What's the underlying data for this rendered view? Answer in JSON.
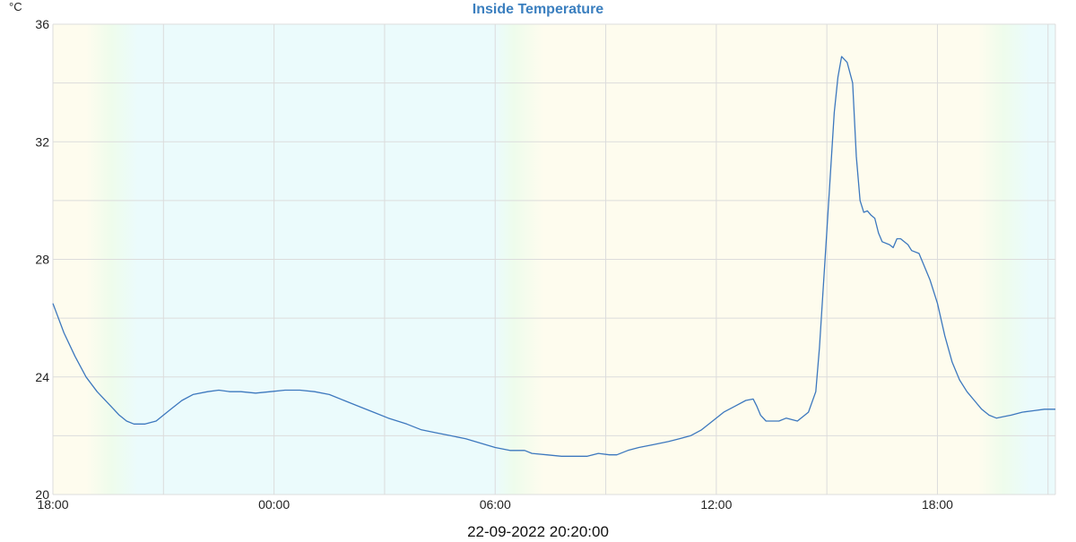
{
  "chart_data": {
    "type": "line",
    "title": "Inside Temperature",
    "unit": "°C",
    "timestamp": "22-09-2022 20:20:00",
    "ylim": [
      20,
      36
    ],
    "y_ticks": [
      20,
      24,
      28,
      32,
      36
    ],
    "x_range_hours": [
      18,
      45.2
    ],
    "x_ticks": [
      {
        "h": 18,
        "label": "18:00"
      },
      {
        "h": 24,
        "label": "00:00"
      },
      {
        "h": 30,
        "label": "06:00"
      },
      {
        "h": 36,
        "label": "12:00"
      },
      {
        "h": 42,
        "label": "18:00"
      }
    ],
    "grid": true,
    "line_color": "#3d78be",
    "band_colors": {
      "day": "#fefcee",
      "night": "#ebfbfc",
      "twilight": "#eefcec"
    },
    "series": [
      {
        "x": [
          18.0,
          18.3,
          18.6,
          18.9,
          19.2,
          19.5,
          19.8,
          20.0,
          20.2,
          20.5,
          20.8,
          21.2,
          21.5,
          21.8,
          22.2,
          22.5,
          22.8,
          23.1,
          23.5,
          23.9,
          24.3,
          24.7,
          25.1,
          25.5,
          25.9,
          26.3,
          26.7,
          27.1,
          27.6,
          28.0,
          28.4,
          28.8,
          29.2,
          29.6,
          30.0,
          30.4,
          30.8,
          31.0,
          31.4,
          31.8,
          32.2,
          32.5,
          32.8,
          33.1,
          33.3,
          33.6,
          33.9,
          34.3,
          34.7,
          35.0,
          35.3,
          35.6,
          35.9,
          36.2,
          36.5,
          36.8,
          37.0,
          37.1,
          37.2,
          37.35,
          37.5,
          37.7,
          37.9,
          38.2,
          38.5,
          38.7,
          38.8,
          39.0,
          39.2,
          39.3,
          39.4,
          39.55,
          39.7,
          39.8,
          39.9,
          40.0,
          40.1,
          40.2,
          40.3,
          40.4,
          40.5,
          40.7,
          40.8,
          40.9,
          41.0,
          41.2,
          41.3,
          41.5,
          41.8,
          42.0,
          42.2,
          42.4,
          42.6,
          42.8,
          43.0,
          43.2,
          43.4,
          43.6,
          43.8,
          44.0,
          44.3,
          44.6,
          44.9,
          45.2
        ],
        "y": [
          26.5,
          25.5,
          24.7,
          24.0,
          23.5,
          23.1,
          22.7,
          22.5,
          22.4,
          22.4,
          22.5,
          22.9,
          23.2,
          23.4,
          23.5,
          23.55,
          23.5,
          23.5,
          23.45,
          23.5,
          23.55,
          23.55,
          23.5,
          23.4,
          23.2,
          23.0,
          22.8,
          22.6,
          22.4,
          22.2,
          22.1,
          22.0,
          21.9,
          21.75,
          21.6,
          21.5,
          21.5,
          21.4,
          21.35,
          21.3,
          21.3,
          21.3,
          21.4,
          21.35,
          21.35,
          21.5,
          21.6,
          21.7,
          21.8,
          21.9,
          22.0,
          22.2,
          22.5,
          22.8,
          23.0,
          23.2,
          23.25,
          23.0,
          22.7,
          22.5,
          22.5,
          22.5,
          22.6,
          22.5,
          22.8,
          23.5,
          25.0,
          29.0,
          33.0,
          34.2,
          34.9,
          34.7,
          34.0,
          31.5,
          30.0,
          29.6,
          29.65,
          29.5,
          29.4,
          28.9,
          28.6,
          28.5,
          28.4,
          28.7,
          28.7,
          28.5,
          28.3,
          28.2,
          27.3,
          26.5,
          25.4,
          24.5,
          23.9,
          23.5,
          23.2,
          22.9,
          22.7,
          22.6,
          22.65,
          22.7,
          22.8,
          22.85,
          22.9,
          22.9
        ]
      }
    ]
  }
}
